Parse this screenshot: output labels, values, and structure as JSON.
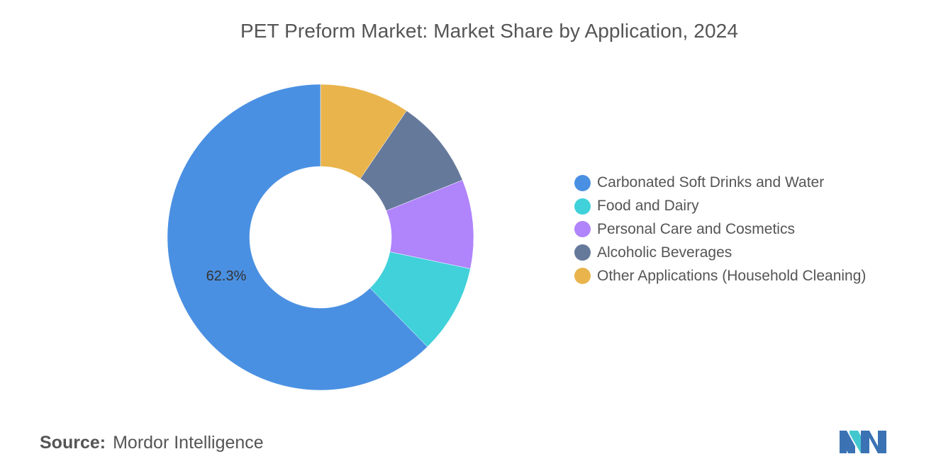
{
  "title": "PET Preform Market: Market Share by Application, 2024",
  "chart_data": {
    "type": "pie",
    "donut": true,
    "title": "PET Preform Market: Market Share by Application, 2024",
    "legend_position": "right",
    "categories": [
      "Carbonated Soft Drinks and Water",
      "Food and Dairy",
      "Personal Care and Cosmetics",
      "Alcoholic Beverages",
      "Other Applications (Household Cleaning)"
    ],
    "values": [
      62.3,
      9.4,
      9.4,
      9.4,
      9.5
    ],
    "colors": [
      "#4a90e2",
      "#40d1da",
      "#b084fb",
      "#65799b",
      "#e9b44c"
    ],
    "data_labels": [
      "62.3%",
      "",
      "",
      "",
      ""
    ]
  },
  "source": {
    "label": "Source:",
    "value": "Mordor Intelligence"
  },
  "logo": {
    "icon": "mordor-intelligence-logo-icon",
    "colors": [
      "#3b72b4",
      "#43c7cf"
    ]
  }
}
